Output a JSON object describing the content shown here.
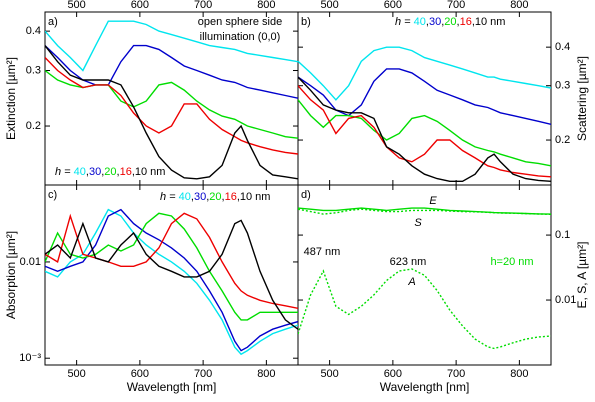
{
  "chart_data": [
    {
      "type": "line",
      "panel_label": "a)",
      "ylabel": "Extinction [µm²]",
      "log_y": true,
      "xtick_side": "top",
      "ytick_side": "left",
      "xlim": [
        450,
        850
      ],
      "ylim": [
        0.13,
        0.46
      ],
      "xticks": [
        500,
        600,
        700,
        800
      ],
      "yticks": [
        0.2,
        0.3,
        0.4
      ],
      "annotations": [
        "open sphere side",
        "illumination (0,0)"
      ],
      "legend_prefix": "h = ",
      "legend_separator": ",",
      "legend_unit": "nm",
      "x": [
        450,
        470,
        490,
        510,
        530,
        550,
        570,
        590,
        610,
        630,
        650,
        670,
        690,
        710,
        730,
        750,
        760,
        770,
        790,
        810,
        830,
        850
      ],
      "series": [
        {
          "name": "40",
          "color": "#00e5ee",
          "values": [
            0.4,
            0.36,
            0.33,
            0.3,
            0.36,
            0.43,
            0.43,
            0.43,
            0.42,
            0.4,
            0.39,
            0.38,
            0.37,
            0.36,
            0.355,
            0.35,
            0.345,
            0.34,
            0.335,
            0.33,
            0.325,
            0.32
          ]
        },
        {
          "name": "30",
          "color": "#0000cc",
          "values": [
            0.36,
            0.33,
            0.3,
            0.28,
            0.27,
            0.27,
            0.32,
            0.36,
            0.36,
            0.35,
            0.33,
            0.31,
            0.3,
            0.29,
            0.28,
            0.275,
            0.27,
            0.265,
            0.26,
            0.255,
            0.25,
            0.245
          ]
        },
        {
          "name": "20",
          "color": "#00dd00",
          "values": [
            0.3,
            0.28,
            0.27,
            0.265,
            0.27,
            0.27,
            0.24,
            0.23,
            0.24,
            0.27,
            0.275,
            0.26,
            0.24,
            0.225,
            0.215,
            0.21,
            0.205,
            0.2,
            0.195,
            0.19,
            0.185,
            0.183
          ]
        },
        {
          "name": "16",
          "color": "#ee0000",
          "values": [
            0.33,
            0.3,
            0.28,
            0.265,
            0.27,
            0.27,
            0.25,
            0.22,
            0.2,
            0.19,
            0.2,
            0.235,
            0.235,
            0.21,
            0.195,
            0.185,
            0.18,
            0.177,
            0.172,
            0.168,
            0.165,
            0.163
          ]
        },
        {
          "name": "10",
          "color": "#000000",
          "values": [
            0.36,
            0.32,
            0.29,
            0.28,
            0.28,
            0.28,
            0.27,
            0.23,
            0.19,
            0.16,
            0.145,
            0.137,
            0.136,
            0.138,
            0.15,
            0.19,
            0.2,
            0.18,
            0.15,
            0.14,
            0.138,
            0.136
          ]
        }
      ]
    },
    {
      "type": "line",
      "panel_label": "b)",
      "ylabel": "Scattering [µm²]",
      "log_y": true,
      "xtick_side": "top",
      "ytick_side": "right",
      "xlim": [
        450,
        850
      ],
      "ylim": [
        0.143,
        0.52
      ],
      "xticks": [
        500,
        600,
        700,
        800
      ],
      "yticks": [
        0.2,
        0.3,
        0.4
      ],
      "legend_prefix": "h = ",
      "legend_separator": ",",
      "legend_unit": "nm",
      "x": [
        450,
        470,
        490,
        510,
        530,
        550,
        570,
        590,
        610,
        630,
        650,
        670,
        690,
        710,
        730,
        750,
        760,
        770,
        790,
        810,
        830,
        850
      ],
      "series": [
        {
          "name": "40",
          "color": "#00e5ee",
          "values": [
            0.36,
            0.33,
            0.3,
            0.27,
            0.3,
            0.36,
            0.39,
            0.4,
            0.4,
            0.39,
            0.37,
            0.36,
            0.35,
            0.34,
            0.33,
            0.32,
            0.32,
            0.315,
            0.31,
            0.305,
            0.3,
            0.295
          ]
        },
        {
          "name": "30",
          "color": "#0000cc",
          "values": [
            0.32,
            0.3,
            0.28,
            0.25,
            0.24,
            0.26,
            0.31,
            0.34,
            0.34,
            0.33,
            0.31,
            0.29,
            0.28,
            0.27,
            0.26,
            0.255,
            0.25,
            0.245,
            0.24,
            0.235,
            0.23,
            0.225
          ]
        },
        {
          "name": "20",
          "color": "#00dd00",
          "values": [
            0.27,
            0.24,
            0.22,
            0.24,
            0.24,
            0.235,
            0.215,
            0.2,
            0.21,
            0.235,
            0.24,
            0.23,
            0.215,
            0.2,
            0.19,
            0.185,
            0.183,
            0.18,
            0.175,
            0.17,
            0.168,
            0.165
          ]
        },
        {
          "name": "16",
          "color": "#ee0000",
          "values": [
            0.3,
            0.27,
            0.25,
            0.21,
            0.235,
            0.24,
            0.22,
            0.19,
            0.175,
            0.17,
            0.18,
            0.2,
            0.2,
            0.185,
            0.175,
            0.165,
            0.163,
            0.16,
            0.157,
            0.155,
            0.153,
            0.152
          ]
        },
        {
          "name": "10",
          "color": "#000000",
          "values": [
            0.32,
            0.29,
            0.26,
            0.25,
            0.245,
            0.245,
            0.235,
            0.19,
            0.18,
            0.165,
            0.155,
            0.15,
            0.147,
            0.147,
            0.155,
            0.175,
            0.18,
            0.17,
            0.155,
            0.15,
            0.148,
            0.147
          ]
        }
      ]
    },
    {
      "type": "line",
      "panel_label": "c)",
      "ylabel": "Absorption [µm²]",
      "xlabel": "Wavelength [nm]",
      "log_y": true,
      "xtick_side": "bottom",
      "ytick_side": "left",
      "xlim": [
        450,
        850
      ],
      "ylim": [
        0.00085,
        0.063
      ],
      "xticks": [
        500,
        600,
        700,
        800
      ],
      "yticks": [
        {
          "value": 0.001,
          "label": "10⁻³"
        },
        0.01
      ],
      "legend_prefix": "h = ",
      "legend_separator": ",",
      "legend_unit": "nm",
      "x": [
        450,
        470,
        490,
        510,
        530,
        550,
        570,
        590,
        610,
        630,
        650,
        670,
        690,
        710,
        730,
        750,
        760,
        770,
        790,
        810,
        830,
        850
      ],
      "series": [
        {
          "name": "40",
          "color": "#00e5ee",
          "values": [
            0.008,
            0.007,
            0.01,
            0.012,
            0.02,
            0.035,
            0.03,
            0.02,
            0.015,
            0.012,
            0.01,
            0.008,
            0.006,
            0.004,
            0.0025,
            0.0013,
            0.0011,
            0.0012,
            0.0015,
            0.0018,
            0.002,
            0.0022
          ]
        },
        {
          "name": "30",
          "color": "#0000cc",
          "values": [
            0.009,
            0.008,
            0.009,
            0.01,
            0.015,
            0.03,
            0.035,
            0.025,
            0.02,
            0.017,
            0.014,
            0.011,
            0.008,
            0.005,
            0.003,
            0.0015,
            0.0012,
            0.0013,
            0.0017,
            0.002,
            0.0022,
            0.0024
          ]
        },
        {
          "name": "20",
          "color": "#00dd00",
          "values": [
            0.01,
            0.02,
            0.012,
            0.011,
            0.012,
            0.015,
            0.013,
            0.015,
            0.025,
            0.032,
            0.03,
            0.022,
            0.014,
            0.008,
            0.005,
            0.003,
            0.0025,
            0.0025,
            0.003,
            0.003,
            0.003,
            0.003
          ]
        },
        {
          "name": "16",
          "color": "#ee0000",
          "values": [
            0.012,
            0.01,
            0.03,
            0.012,
            0.011,
            0.01,
            0.009,
            0.009,
            0.01,
            0.014,
            0.025,
            0.032,
            0.028,
            0.018,
            0.01,
            0.006,
            0.005,
            0.0045,
            0.004,
            0.0037,
            0.0035,
            0.0033
          ]
        },
        {
          "name": "10",
          "color": "#000000",
          "values": [
            0.012,
            0.015,
            0.011,
            0.025,
            0.011,
            0.01,
            0.015,
            0.02,
            0.012,
            0.009,
            0.008,
            0.007,
            0.007,
            0.008,
            0.012,
            0.025,
            0.027,
            0.02,
            0.008,
            0.004,
            0.0025,
            0.002
          ]
        }
      ]
    },
    {
      "type": "line",
      "panel_label": "d)",
      "ylabel": "E, S, A [µm²]",
      "xlabel": "Wavelength [nm]",
      "log_y": true,
      "xtick_side": "bottom",
      "ytick_side": "right",
      "xlim": [
        450,
        850
      ],
      "ylim": [
        0.001,
        0.59
      ],
      "xticks": [
        500,
        600,
        700,
        800
      ],
      "yticks": [
        0.01,
        0.1
      ],
      "annotations": [
        "487 nm",
        "623 nm",
        "h=20 nm"
      ],
      "x": [
        450,
        470,
        490,
        510,
        530,
        550,
        570,
        590,
        610,
        630,
        650,
        670,
        690,
        710,
        730,
        750,
        760,
        770,
        790,
        810,
        830,
        850
      ],
      "series": [
        {
          "name": "E",
          "color": "#00dd00",
          "style": "solid",
          "values": [
            0.26,
            0.25,
            0.24,
            0.24,
            0.25,
            0.26,
            0.25,
            0.24,
            0.25,
            0.26,
            0.26,
            0.25,
            0.24,
            0.235,
            0.23,
            0.225,
            0.222,
            0.22,
            0.218,
            0.215,
            0.212,
            0.21
          ]
        },
        {
          "name": "S",
          "color": "#00dd00",
          "style": "dotted",
          "values": [
            0.25,
            0.23,
            0.21,
            0.22,
            0.24,
            0.25,
            0.24,
            0.23,
            0.23,
            0.24,
            0.24,
            0.24,
            0.235,
            0.23,
            0.228,
            0.224,
            0.221,
            0.219,
            0.217,
            0.214,
            0.211,
            0.209
          ]
        },
        {
          "name": "A",
          "color": "#00dd00",
          "style": "dotted",
          "values": [
            0.003,
            0.012,
            0.028,
            0.008,
            0.006,
            0.008,
            0.012,
            0.02,
            0.028,
            0.03,
            0.024,
            0.014,
            0.007,
            0.004,
            0.0025,
            0.0019,
            0.0018,
            0.0019,
            0.0022,
            0.0025,
            0.0027,
            0.0028
          ]
        }
      ]
    }
  ]
}
